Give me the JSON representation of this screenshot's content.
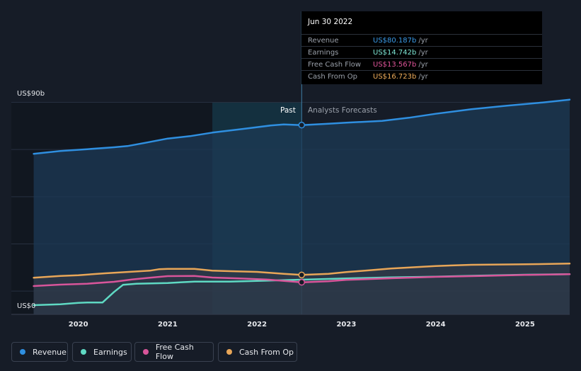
{
  "tooltip": {
    "date": "Jun 30 2022",
    "rows": [
      {
        "label": "Revenue",
        "value": "US$80.187b",
        "unit": "/yr",
        "color": "#3b9be8"
      },
      {
        "label": "Earnings",
        "value": "US$14.742b",
        "unit": "/yr",
        "color": "#7ee8d6"
      },
      {
        "label": "Free Cash Flow",
        "value": "US$13.567b",
        "unit": "/yr",
        "color": "#e0559a"
      },
      {
        "label": "Cash From Op",
        "value": "US$16.723b",
        "unit": "/yr",
        "color": "#f0ad5a"
      }
    ]
  },
  "labels": {
    "past": "Past",
    "forecast": "Analysts Forecasts"
  },
  "legend": [
    {
      "label": "Revenue",
      "color": "#2f8fe0"
    },
    {
      "label": "Earnings",
      "color": "#5fd9c3"
    },
    {
      "label": "Free Cash Flow",
      "color": "#d8559a"
    },
    {
      "label": "Cash From Op",
      "color": "#e8a658"
    }
  ],
  "chart_data": {
    "type": "line",
    "y_top_label": "US$90b",
    "y_bottom_label": "US$0",
    "ylim": [
      0,
      90
    ],
    "xlim": [
      2019.5,
      2025.5
    ],
    "x_ticks": [
      "2020",
      "2021",
      "2022",
      "2023",
      "2024",
      "2025"
    ],
    "grid": true,
    "past_end": 2022.5,
    "series": [
      {
        "name": "Revenue",
        "color": "#2f8fe0",
        "points": [
          [
            2019.5,
            68
          ],
          [
            2019.8,
            69.2
          ],
          [
            2020.1,
            70
          ],
          [
            2020.4,
            70.8
          ],
          [
            2020.55,
            71.3
          ],
          [
            2020.75,
            72.7
          ],
          [
            2021.0,
            74.5
          ],
          [
            2021.25,
            75.5
          ],
          [
            2021.5,
            77
          ],
          [
            2021.85,
            78.6
          ],
          [
            2022.15,
            80
          ],
          [
            2022.3,
            80.5
          ],
          [
            2022.5,
            80.2
          ],
          [
            2022.8,
            80.8
          ],
          [
            2023.0,
            81.2
          ],
          [
            2023.4,
            82
          ],
          [
            2023.7,
            83.3
          ],
          [
            2024.0,
            85
          ],
          [
            2024.4,
            86.9
          ],
          [
            2024.8,
            88.4
          ],
          [
            2025.2,
            89.8
          ],
          [
            2025.5,
            91
          ]
        ]
      },
      {
        "name": "Earnings",
        "color": "#5fd9c3",
        "points": [
          [
            2019.5,
            3.9
          ],
          [
            2019.8,
            4.3
          ],
          [
            2020.0,
            4.9
          ],
          [
            2020.1,
            5
          ],
          [
            2020.27,
            5
          ],
          [
            2020.4,
            9.5
          ],
          [
            2020.5,
            12.5
          ],
          [
            2020.65,
            13
          ],
          [
            2021.0,
            13.3
          ],
          [
            2021.3,
            13.9
          ],
          [
            2021.7,
            13.9
          ],
          [
            2022.0,
            14.2
          ],
          [
            2022.5,
            14.7
          ],
          [
            2023.0,
            15.2
          ],
          [
            2023.5,
            15.7
          ],
          [
            2024.0,
            16
          ],
          [
            2024.5,
            16.4
          ],
          [
            2025.0,
            16.8
          ],
          [
            2025.5,
            17
          ]
        ]
      },
      {
        "name": "Free Cash Flow",
        "color": "#d8559a",
        "points": [
          [
            2019.5,
            12
          ],
          [
            2019.8,
            12.6
          ],
          [
            2020.1,
            13
          ],
          [
            2020.4,
            13.8
          ],
          [
            2020.6,
            14.8
          ],
          [
            2020.8,
            15.5
          ],
          [
            2021.0,
            16.2
          ],
          [
            2021.3,
            16.3
          ],
          [
            2021.5,
            15.6
          ],
          [
            2021.8,
            15.2
          ],
          [
            2022.1,
            14.8
          ],
          [
            2022.5,
            13.6
          ],
          [
            2022.8,
            14
          ],
          [
            2023.0,
            14.6
          ],
          [
            2023.5,
            15.3
          ],
          [
            2024.0,
            15.9
          ],
          [
            2024.5,
            16.3
          ],
          [
            2025.0,
            16.7
          ],
          [
            2025.5,
            17
          ]
        ]
      },
      {
        "name": "Cash From Op",
        "color": "#e8a658",
        "points": [
          [
            2019.5,
            15.5
          ],
          [
            2019.8,
            16.3
          ],
          [
            2020.0,
            16.6
          ],
          [
            2020.3,
            17.4
          ],
          [
            2020.6,
            18.1
          ],
          [
            2020.8,
            18.5
          ],
          [
            2020.9,
            19.1
          ],
          [
            2021.0,
            19.3
          ],
          [
            2021.3,
            19.3
          ],
          [
            2021.5,
            18.5
          ],
          [
            2021.7,
            18.3
          ],
          [
            2022.0,
            18
          ],
          [
            2022.3,
            17.2
          ],
          [
            2022.5,
            16.7
          ],
          [
            2022.8,
            17.2
          ],
          [
            2023.0,
            17.9
          ],
          [
            2023.5,
            19.4
          ],
          [
            2024.0,
            20.5
          ],
          [
            2024.4,
            21
          ],
          [
            2025.0,
            21.2
          ],
          [
            2025.5,
            21.5
          ]
        ]
      }
    ]
  }
}
